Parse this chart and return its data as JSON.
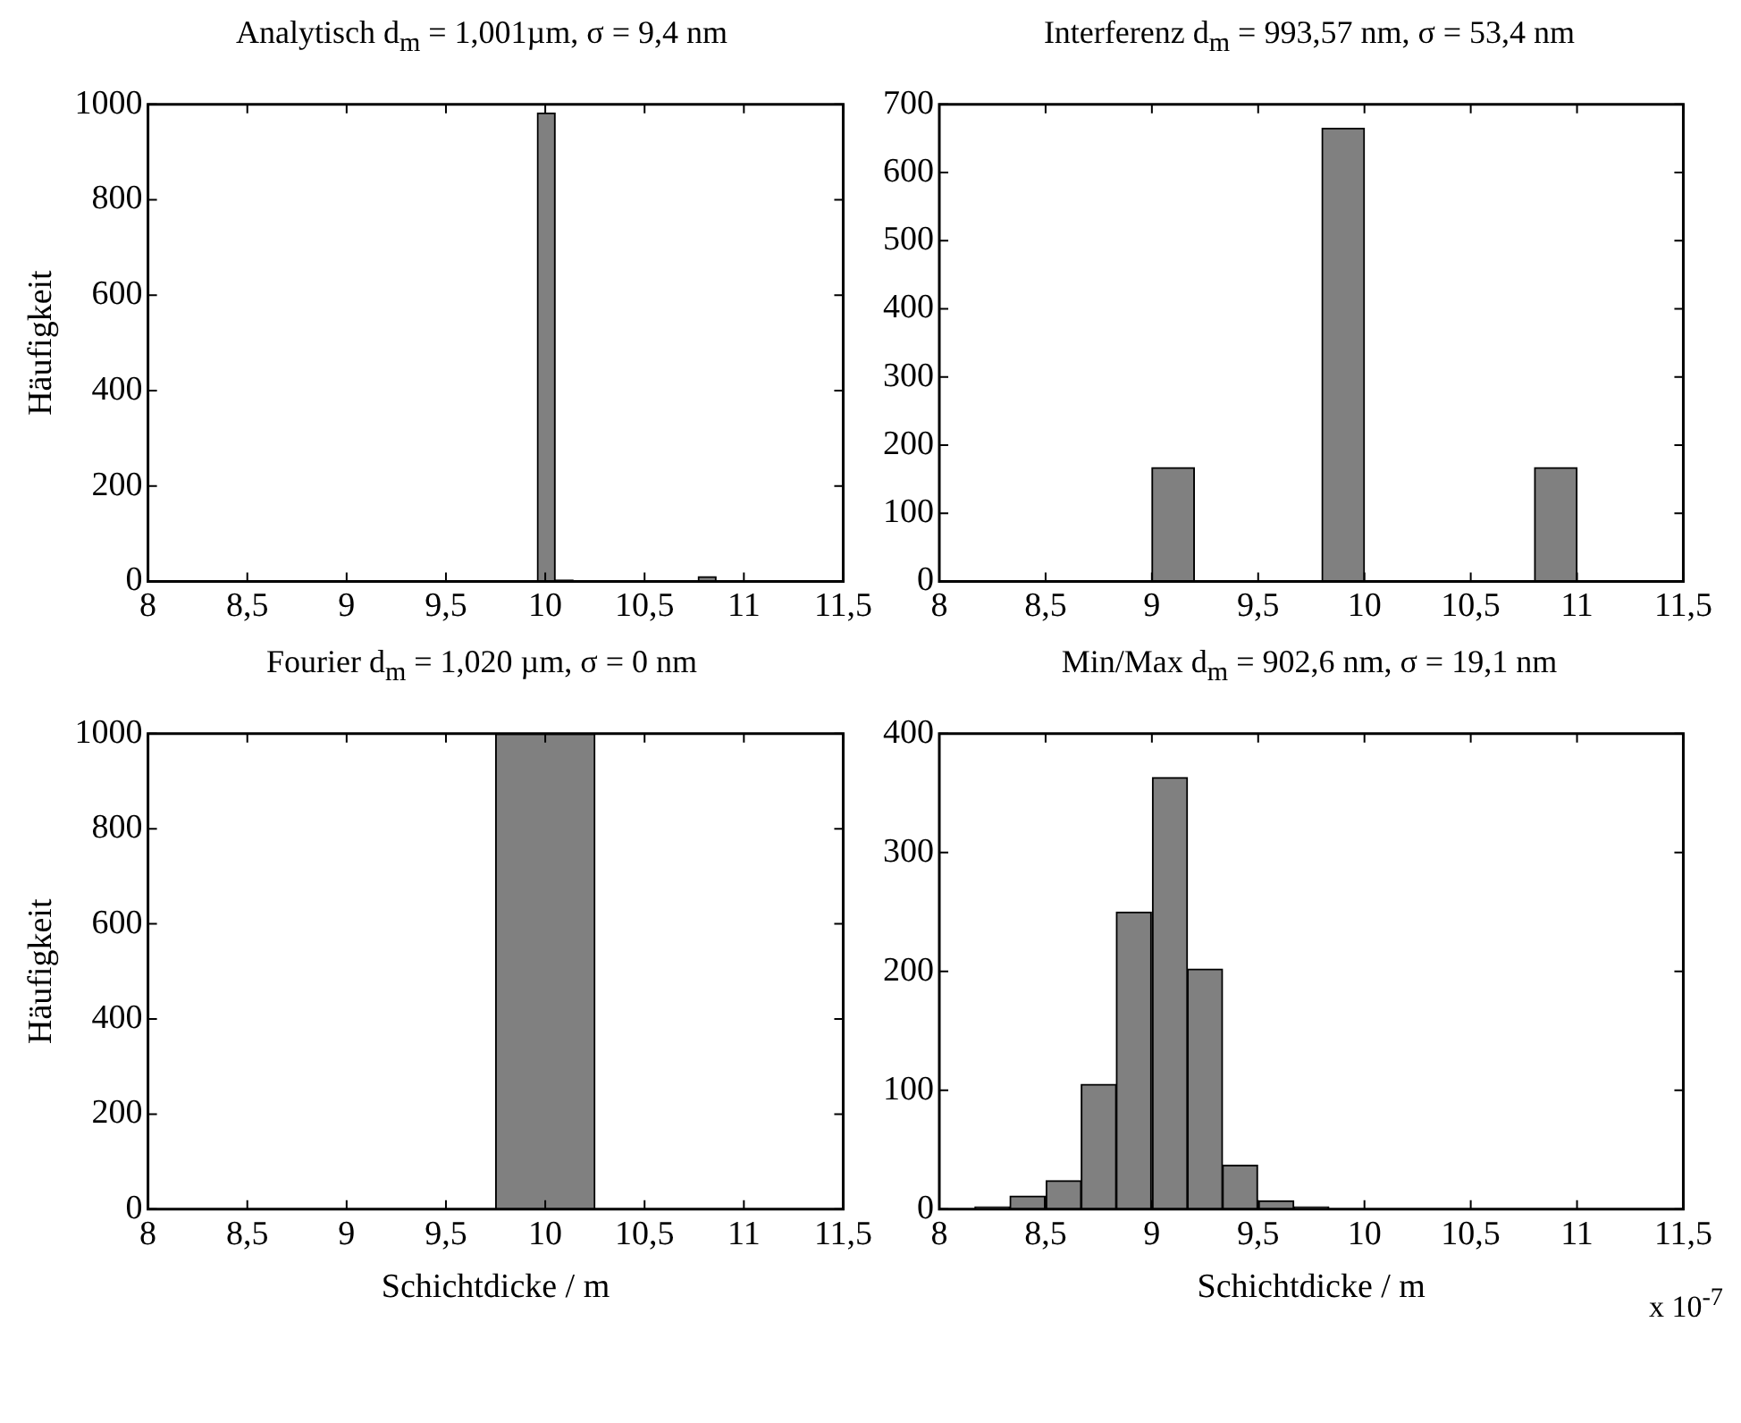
{
  "chart_data": [
    {
      "type": "histogram",
      "title": "Analytisch d$_{m}$ = 1,001µm, σ = 9,4 nm",
      "ylabel": "Häufigkeit",
      "color": "#808080",
      "bins": [
        9.96,
        10.05,
        10.14,
        10.23,
        10.32,
        10.41,
        10.5,
        10.59,
        10.68,
        10.77,
        10.86
      ],
      "values": [
        982,
        3,
        1,
        0,
        0,
        0,
        0,
        0,
        0,
        10
      ],
      "xlim": [
        8,
        11.5
      ],
      "xticks": [
        8,
        {
          "value": 8.5,
          "label": "8,5"
        },
        9,
        {
          "value": 9.5,
          "label": "9,5"
        },
        10,
        {
          "value": 10.5,
          "label": "10,5"
        },
        11,
        {
          "value": 11.5,
          "label": "11,5"
        }
      ],
      "ylim": [
        0,
        1000
      ],
      "yticks": [
        0,
        200,
        400,
        600,
        800,
        1000
      ]
    },
    {
      "type": "histogram",
      "title": "Interferenz d$_{m}$ = 993,57 nm, σ = 53,4 nm",
      "color": "#808080",
      "bins": [
        9.0,
        9.2,
        9.4,
        9.6,
        9.8,
        10.0,
        10.2,
        10.4,
        10.6,
        10.8,
        11.0
      ],
      "values": [
        167,
        0,
        0,
        0,
        665,
        0,
        0,
        0,
        0,
        167
      ],
      "xlim": [
        8,
        11.5
      ],
      "xticks": [
        8,
        {
          "value": 8.5,
          "label": "8,5"
        },
        9,
        {
          "value": 9.5,
          "label": "9,5"
        },
        10,
        {
          "value": 10.5,
          "label": "10,5"
        },
        11,
        {
          "value": 11.5,
          "label": "11,5"
        }
      ],
      "ylim": [
        0,
        700
      ],
      "yticks": [
        0,
        100,
        200,
        300,
        400,
        500,
        600,
        700
      ]
    },
    {
      "type": "histogram",
      "title": "Fourier d$_{m}$ = 1,020 µm, σ = 0 nm",
      "ylabel": "Häufigkeit",
      "xlabel": "Schichtdicke / m",
      "color": "#808080",
      "bins": [
        9.75,
        10.25
      ],
      "values": [
        1000
      ],
      "xlim": [
        8,
        11.5
      ],
      "xticks": [
        8,
        {
          "value": 8.5,
          "label": "8,5"
        },
        9,
        {
          "value": 9.5,
          "label": "9,5"
        },
        10,
        {
          "value": 10.5,
          "label": "10,5"
        },
        11,
        {
          "value": 11.5,
          "label": "11,5"
        }
      ],
      "ylim": [
        0,
        1000
      ],
      "yticks": [
        0,
        200,
        400,
        600,
        800,
        1000
      ]
    },
    {
      "type": "histogram",
      "title": "Min/Max d$_{m}$ = 902,6 nm, σ = 19,1 nm",
      "xlabel": "Schichtdicke / m",
      "color": "#808080",
      "annotations": [
        "x 10$^{-7}$"
      ],
      "bins": [
        8.17,
        8.33,
        8.5,
        8.67,
        8.83,
        9.0,
        9.17,
        9.33,
        9.5,
        9.67,
        9.83
      ],
      "values": [
        2,
        11,
        24,
        105,
        250,
        363,
        202,
        37,
        7,
        2
      ],
      "xlim": [
        8,
        11.5
      ],
      "xticks": [
        8,
        {
          "value": 8.5,
          "label": "8,5"
        },
        9,
        {
          "value": 9.5,
          "label": "9,5"
        },
        10,
        {
          "value": 10.5,
          "label": "10,5"
        },
        11,
        {
          "value": 11.5,
          "label": "11,5"
        }
      ],
      "ylim": [
        0,
        400
      ],
      "yticks": [
        0,
        100,
        200,
        300,
        400
      ]
    }
  ]
}
